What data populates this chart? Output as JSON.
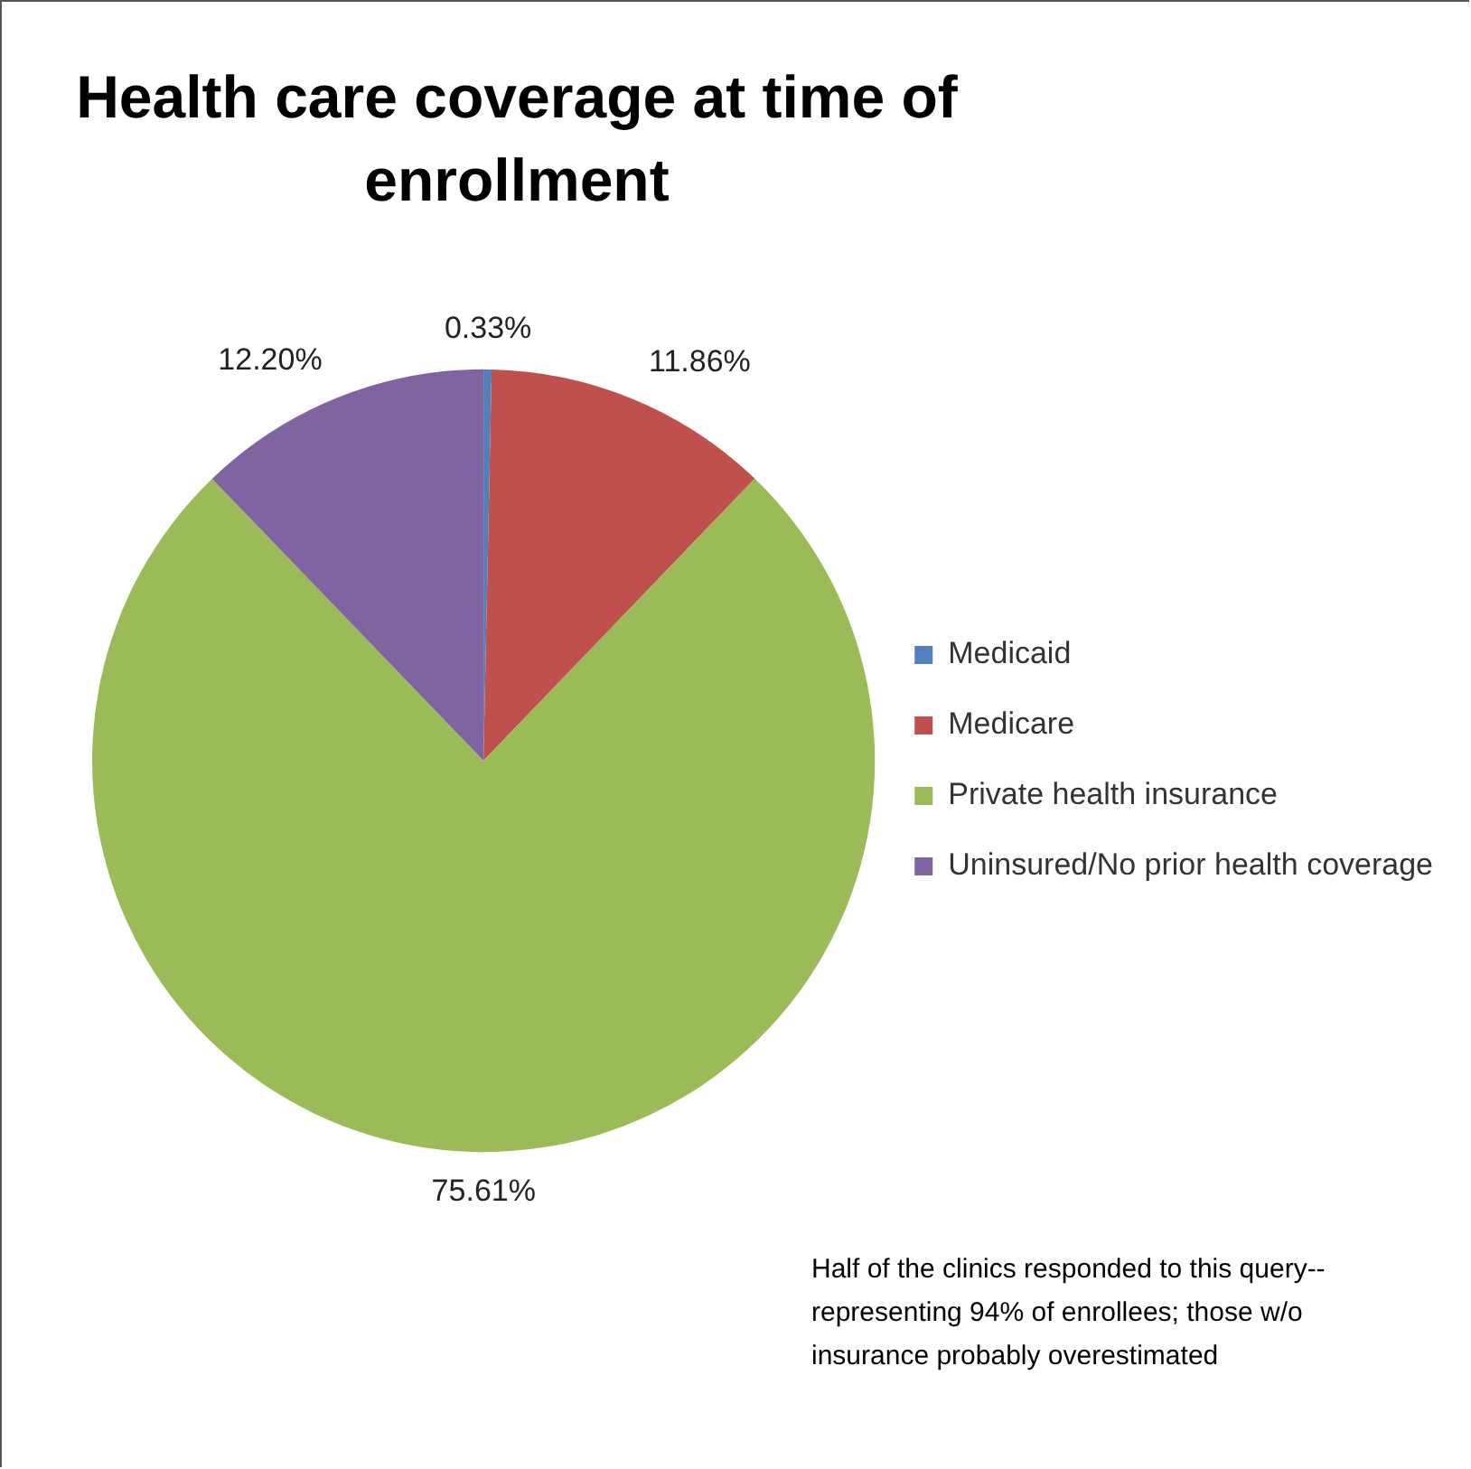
{
  "chart_data": {
    "type": "pie",
    "title": "Health care coverage at time of enrollment",
    "categories": [
      "Medicaid",
      "Medicare",
      "Private health insurance",
      "Uninsured/No prior health coverage"
    ],
    "values": [
      0.33,
      11.86,
      75.61,
      12.2
    ],
    "value_labels": [
      "0.33%",
      "11.86%",
      "75.61%",
      "12.20%"
    ],
    "colors": [
      "#4f81bd",
      "#c0504d",
      "#9bbb59",
      "#8064a2"
    ],
    "legend": "right",
    "annotations": [
      "Half of the clinics responded to this query--representing 94% of enrollees; those w/o insurance probably overestimated"
    ]
  }
}
